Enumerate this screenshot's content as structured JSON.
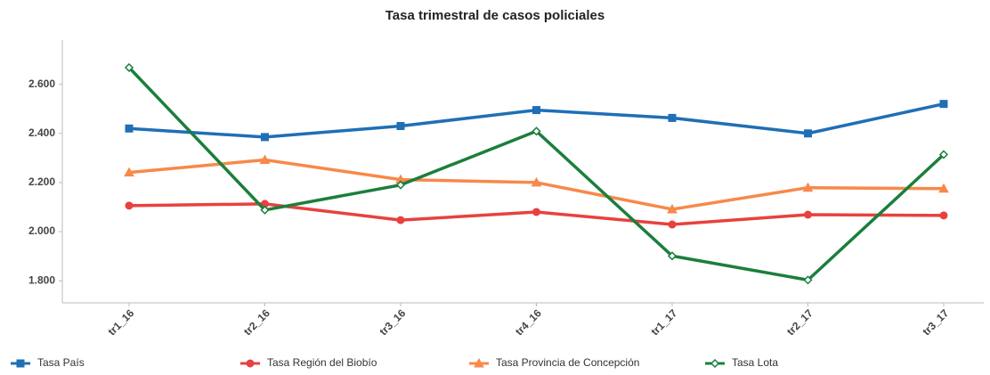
{
  "chart_data": {
    "type": "line",
    "title": "Tasa trimestral de casos policiales",
    "categories": [
      "tr1_16",
      "tr2_16",
      "tr3_16",
      "tr4_16",
      "tr1_17",
      "tr2_17",
      "tr3_17"
    ],
    "series": [
      {
        "name": "Tasa País",
        "color": "#1f6fb5",
        "marker": "square",
        "values": [
          2420,
          2385,
          2430,
          2495,
          2463,
          2400,
          2520
        ]
      },
      {
        "name": "Tasa Región del Biobío",
        "color": "#e8413f",
        "marker": "circle",
        "values": [
          2106,
          2113,
          2047,
          2080,
          2029,
          2069,
          2066
        ]
      },
      {
        "name": "Tasa Provincia de Concepción",
        "color": "#f7894a",
        "marker": "triangle",
        "values": [
          2241,
          2292,
          2212,
          2200,
          2091,
          2179,
          2175
        ]
      },
      {
        "name": "Tasa Lota",
        "color": "#1a7f3c",
        "marker": "diamond",
        "values": [
          2668,
          2088,
          2190,
          2409,
          1901,
          1803,
          2314
        ]
      }
    ],
    "ylim": [
      1710,
      2780
    ],
    "yticks": [
      {
        "value": 1800,
        "label": "1.800"
      },
      {
        "value": 2000,
        "label": "2.000"
      },
      {
        "value": 2200,
        "label": "2.200"
      },
      {
        "value": 2400,
        "label": "2.400"
      },
      {
        "value": 2600,
        "label": "2.600"
      }
    ],
    "grid": false,
    "legend": "bottom"
  }
}
